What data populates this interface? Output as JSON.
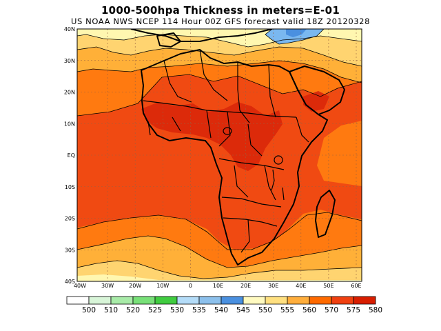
{
  "title": "1000-500hpa Thickness in meters=E-01",
  "subtitle": "US NOAA NWS NCEP 114 Hour 00Z GFS forecast valid 18Z 20120328",
  "lat_labels": [
    "40N",
    "30N",
    "20N",
    "10N",
    "EQ",
    "10S",
    "20S",
    "30S",
    "40S"
  ],
  "lon_labels": [
    "40W",
    "30W",
    "20W",
    "10W",
    "0",
    "10E",
    "20E",
    "30E",
    "40E",
    "50E",
    "60E"
  ],
  "legend": {
    "values": [
      "500",
      "510",
      "520",
      "525",
      "530",
      "535",
      "540",
      "545",
      "550",
      "555",
      "560",
      "570",
      "575",
      "580"
    ],
    "colors": [
      "#ffffff",
      "#d8f5d8",
      "#a8eba8",
      "#78e078",
      "#40cc40",
      "#b4dcf8",
      "#8cc0ec",
      "#4a90e0",
      "#fffac0",
      "#ffe080",
      "#ffae3c",
      "#ff6a00",
      "#f04010",
      "#d81e00"
    ]
  },
  "fill_colors": {
    "c550": "#fff7b0",
    "c555": "#ffd470",
    "c560": "#ffb038",
    "c570": "#ff7a10",
    "c575": "#f04a12",
    "c580": "#dc2a0a",
    "cold": "#7ab8f0",
    "cold_deep": "#4a90e0"
  }
}
